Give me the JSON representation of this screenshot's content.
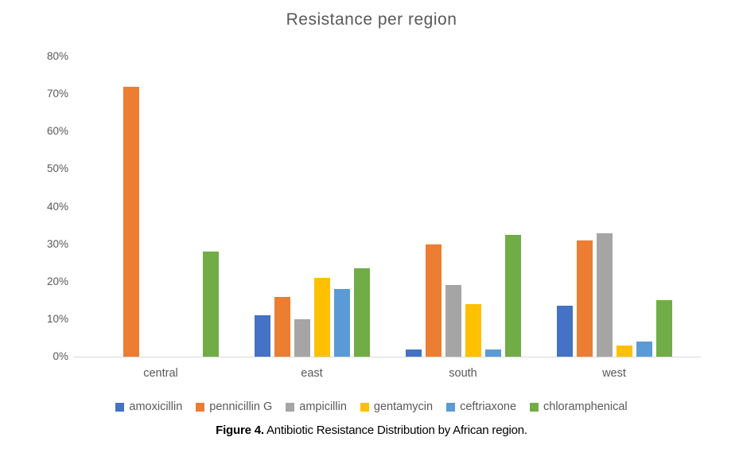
{
  "chart_data": {
    "type": "bar",
    "title": "Resistance per region",
    "categories": [
      "central",
      "east",
      "south",
      "west"
    ],
    "series": [
      {
        "name": "amoxicillin",
        "color": "#4472C4",
        "values": [
          0,
          11,
          2,
          13.5
        ]
      },
      {
        "name": "pennicillin G",
        "color": "#ED7D31",
        "values": [
          72,
          16,
          30,
          31
        ]
      },
      {
        "name": "ampicillin",
        "color": "#A5A5A5",
        "values": [
          0,
          10,
          19,
          33
        ]
      },
      {
        "name": "gentamycin",
        "color": "#FFC000",
        "values": [
          0,
          21,
          14,
          3
        ]
      },
      {
        "name": "ceftriaxone",
        "color": "#5B9BD5",
        "values": [
          0,
          18,
          2,
          4
        ]
      },
      {
        "name": "chloramphenical",
        "color": "#70AD47",
        "values": [
          28,
          23.5,
          32.5,
          15
        ]
      }
    ],
    "ylim": [
      0,
      80
    ],
    "ytick_step": 10,
    "yticks": [
      "80%",
      "70%",
      "60%",
      "50%",
      "40%",
      "30%",
      "20%",
      "10%",
      "0%"
    ],
    "grid": false,
    "legend_position": "bottom"
  },
  "caption": {
    "figure_label": "Figure 4.",
    "text": " Antibiotic Resistance Distribution by African region."
  },
  "colors": {
    "axis_line": "#D9D9D9",
    "axis_text": "#595959",
    "title_text": "#595959",
    "caption_text": "#000000",
    "background": "#FFFFFF"
  }
}
